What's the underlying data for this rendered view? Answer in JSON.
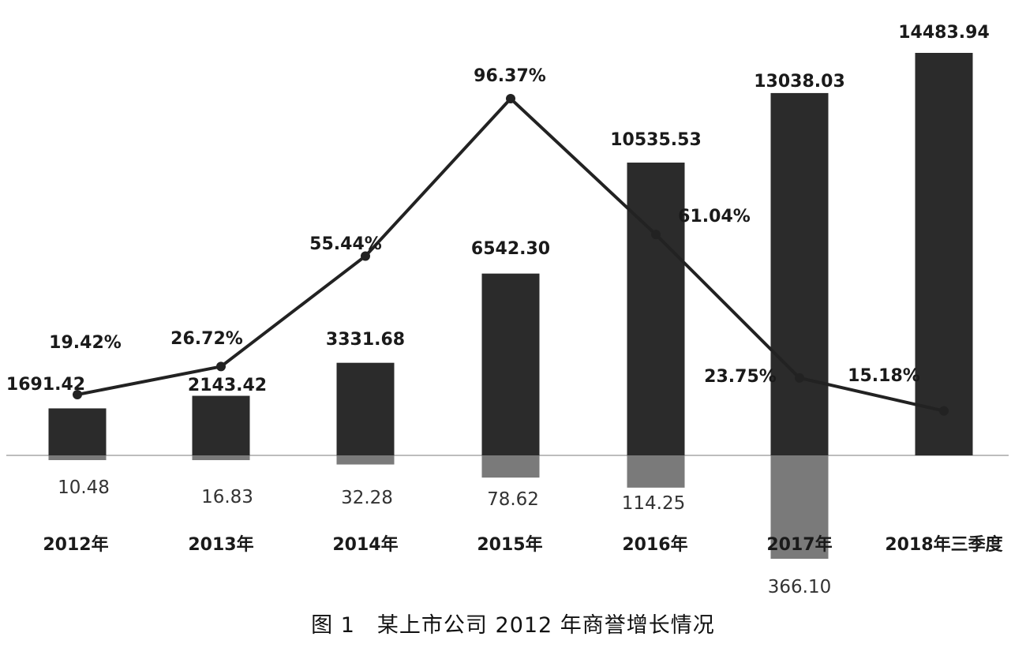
{
  "chart_data": {
    "type": "bar",
    "categories": [
      "2012年",
      "2013年",
      "2014年",
      "2015年",
      "2016年",
      "2017年",
      "2018年三季度"
    ],
    "series": [
      {
        "values": [
          1691.42,
          2143.42,
          3331.68,
          6542.3,
          10535.53,
          13038.03,
          14483.94
        ],
        "labels": [
          "1691.42",
          "2143.42",
          "3331.68",
          "6542.30",
          "10535.53",
          "13038.03",
          "14483.94"
        ]
      },
      {
        "values": [
          10.48,
          16.83,
          32.28,
          78.62,
          114.25,
          366.1,
          null
        ],
        "labels": [
          "10.48",
          "16.83",
          "32.28",
          "78.62",
          "114.25",
          "366.10",
          ""
        ]
      },
      {
        "type": "line",
        "values": [
          19.42,
          26.72,
          55.44,
          96.37,
          61.04,
          23.75,
          15.18
        ],
        "labels": [
          "19.42%",
          "26.72%",
          "55.44%",
          "96.37%",
          "61.04%",
          "23.75%",
          "15.18%"
        ]
      }
    ],
    "colors": {
      "bar": "#2b2b2b",
      "negative_bar": "#7a7a7a",
      "line": "#222222",
      "baseline": "#bdbdbd"
    },
    "legend": "none",
    "grid": false
  },
  "caption": "图 1　某上市公司 2012 年商誉增长情况"
}
